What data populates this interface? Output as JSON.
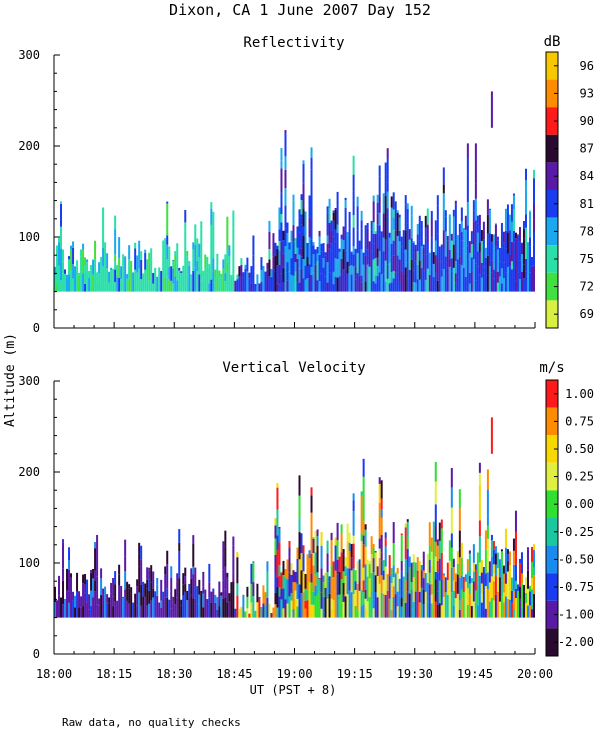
{
  "title": "Dixon, CA  1 June 2007  Day 152",
  "footnote": "Raw data, no quality checks",
  "ylabel": "Altitude (m)",
  "xlabel": "UT  (PST + 8)",
  "chart_data": [
    {
      "type": "heatmap",
      "title": "Reflectivity",
      "unit": "dB",
      "xlabel": "UT  (PST + 8)",
      "ylabel": "Altitude (m)",
      "xlim_minutes_ut": [
        1080,
        1200
      ],
      "ylim": [
        0,
        300
      ],
      "x_ticks": [
        "18:00",
        "18:15",
        "18:30",
        "18:45",
        "19:00",
        "19:15",
        "19:30",
        "19:45",
        "20:00"
      ],
      "y_ticks": [
        0,
        100,
        200,
        300
      ],
      "colorbar_ticks": [
        "96",
        "93",
        "90",
        "87",
        "84",
        "81",
        "78",
        "75",
        "72",
        "69"
      ],
      "colorbar_colors": [
        "#f7c800",
        "#ff8c00",
        "#ff1a1a",
        "#2a0a2e",
        "#5a1aa8",
        "#1a3cf0",
        "#1aa8f0",
        "#28e0a8",
        "#40e040",
        "#d8f040"
      ],
      "profile_base_m": 40,
      "segments": [
        {
          "start": "18:00",
          "end": "18:45",
          "top_m": 100,
          "peak_m": 140,
          "dominant_dB": 75
        },
        {
          "start": "18:45",
          "end": "18:55",
          "top_m": 80,
          "peak_m": 120,
          "dominant_dB": 81
        },
        {
          "start": "18:55",
          "end": "19:55",
          "top_m": 150,
          "peak_m": 220,
          "dominant_dB": 81
        },
        {
          "start": "19:55",
          "end": "20:00",
          "top_m": 130,
          "peak_m": 180,
          "dominant_dB": 81
        }
      ],
      "isolated_echo": {
        "time": "19:49",
        "bottom_m": 220,
        "top_m": 260,
        "value_dB": 84
      }
    },
    {
      "type": "heatmap",
      "title": "Vertical Velocity",
      "unit": "m/s",
      "xlabel": "UT  (PST + 8)",
      "ylabel": "Altitude (m)",
      "xlim_minutes_ut": [
        1080,
        1200
      ],
      "ylim": [
        0,
        300
      ],
      "x_ticks": [
        "18:00",
        "18:15",
        "18:30",
        "18:45",
        "19:00",
        "19:15",
        "19:30",
        "19:45",
        "20:00"
      ],
      "y_ticks": [
        0,
        100,
        200,
        300
      ],
      "colorbar_ticks": [
        "1.00",
        "0.75",
        "0.50",
        "0.25",
        "0.00",
        "-0.25",
        "-0.50",
        "-0.75",
        "-1.00",
        "-2.00"
      ],
      "colorbar_colors": [
        "#ff1a1a",
        "#ff8c00",
        "#f7d800",
        "#e0f040",
        "#30e030",
        "#1ac8a0",
        "#1a8cf0",
        "#1a3cf0",
        "#5a1aa8",
        "#2a0a2e"
      ],
      "profile_base_m": 40,
      "segments": [
        {
          "start": "18:00",
          "end": "18:45",
          "top_m": 100,
          "peak_m": 140,
          "dominant_ms": -1.0
        },
        {
          "start": "18:45",
          "end": "18:55",
          "top_m": 80,
          "peak_m": 120,
          "dominant_ms": 0.5
        },
        {
          "start": "18:55",
          "end": "19:55",
          "top_m": 150,
          "peak_m": 220,
          "dominant_ms": 0.75
        },
        {
          "start": "19:55",
          "end": "20:00",
          "top_m": 130,
          "peak_m": 180,
          "dominant_ms": 0.25
        }
      ],
      "isolated_echo": {
        "time": "19:49",
        "bottom_m": 220,
        "top_m": 260,
        "value_ms": 1.0
      }
    }
  ]
}
